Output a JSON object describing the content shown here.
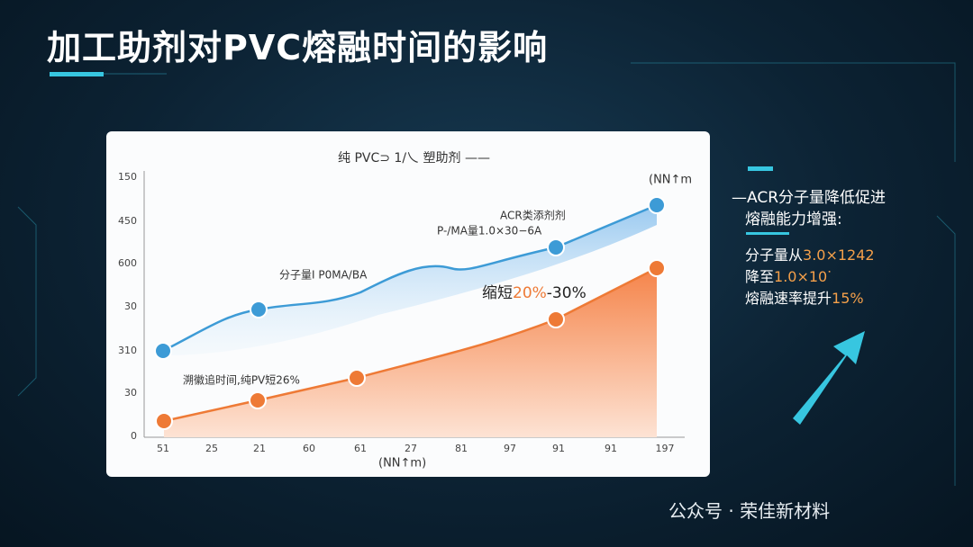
{
  "title": "加工助剂对PVC熔融时间的影响",
  "chart": {
    "legend": "纯 PVC⊃ 1/乀 塑助剂 ——",
    "unit_top": "(NN↑m",
    "unit_bottom": "(NN↑m)",
    "y_labels": [
      "150",
      "450",
      "600",
      "30",
      "310",
      "30",
      "0"
    ],
    "x_labels": [
      "51",
      "25",
      "21",
      "60",
      "61",
      "27",
      "81",
      "97",
      "91",
      "91",
      "197"
    ],
    "annotations": [
      "ACR类添剂剂",
      "P-/MA量1.0×30−6A",
      "分子量I P0MA/BA",
      "溯徽追时间,纯PV短26%"
    ],
    "highlight": {
      "prefix": "缩短",
      "accent": "20%",
      "suffix": "-30%"
    }
  },
  "side": {
    "heading": [
      "—ACR分子量降低促进",
      "熔融能力增强:"
    ],
    "lines": [
      {
        "text": "分子量从",
        "accent": "3.0×1242"
      },
      {
        "text": "降至",
        "accent": "1.0×10ᐝ"
      },
      {
        "text": "熔融速率提升",
        "accent": "15%"
      }
    ]
  },
  "watermark": "公众号 · 荣佳新材料"
}
